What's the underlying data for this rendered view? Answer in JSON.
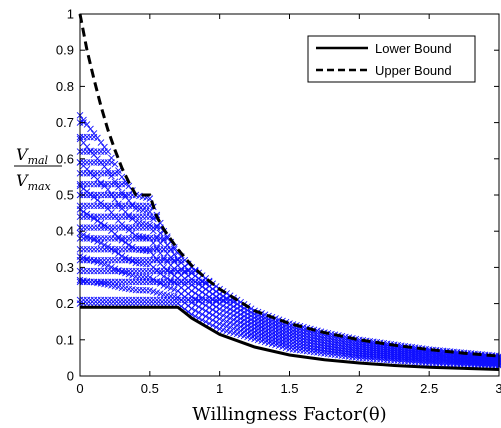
{
  "chart_data": {
    "type": "scatter",
    "title": "",
    "xlabel": "Willingness Factor(θ)",
    "ylabel": {
      "numerator": "V",
      "numerator_sub": "mal",
      "denominator": "V",
      "denominator_sub": "max"
    },
    "xlim": [
      0,
      3
    ],
    "ylim": [
      0,
      1
    ],
    "xticks": [
      "0",
      "0.5",
      "1",
      "1.5",
      "2",
      "2.5",
      "3"
    ],
    "yticks": [
      "0",
      "0.1",
      "0.2",
      "0.3",
      "0.4",
      "0.5",
      "0.6",
      "0.7",
      "0.8",
      "0.9",
      "1"
    ],
    "grid": false,
    "legend_position": "top-right",
    "series": [
      {
        "name": "Lower Bound",
        "style": "solid",
        "color": "#000000",
        "x": [
          0,
          0.7,
          0.75,
          0.8,
          1.0,
          1.25,
          1.5,
          1.75,
          2.0,
          2.25,
          2.5,
          2.75,
          3.0
        ],
        "y": [
          0.19,
          0.19,
          0.175,
          0.16,
          0.115,
          0.08,
          0.058,
          0.045,
          0.036,
          0.029,
          0.024,
          0.021,
          0.018
        ]
      },
      {
        "name": "Upper Bound",
        "style": "dashed",
        "color": "#000000",
        "x": [
          0,
          0.05,
          0.1,
          0.15,
          0.2,
          0.25,
          0.3,
          0.35,
          0.4,
          0.45,
          0.5,
          0.55,
          0.6,
          0.7,
          0.8,
          0.9,
          1.0,
          1.25,
          1.5,
          1.75,
          2.0,
          2.25,
          2.5,
          2.75,
          3.0
        ],
        "y": [
          1.0,
          0.9,
          0.82,
          0.745,
          0.68,
          0.625,
          0.575,
          0.535,
          0.5,
          0.5,
          0.5,
          0.44,
          0.405,
          0.35,
          0.305,
          0.27,
          0.24,
          0.18,
          0.145,
          0.12,
          0.1,
          0.085,
          0.073,
          0.063,
          0.055
        ]
      }
    ],
    "scatter": {
      "marker": "x",
      "color": "#1010ff",
      "x_start": 0,
      "x_step": 0.025,
      "x_end": 3.0,
      "band_low": [
        [
          0,
          0.2
        ],
        [
          0.7,
          0.2
        ],
        [
          0.8,
          0.17
        ],
        [
          1.0,
          0.13
        ],
        [
          1.5,
          0.075
        ],
        [
          2.0,
          0.05
        ],
        [
          2.5,
          0.036
        ],
        [
          3.0,
          0.028
        ]
      ],
      "band_high": [
        [
          0,
          0.72
        ],
        [
          0.2,
          0.62
        ],
        [
          0.3,
          0.55
        ],
        [
          0.4,
          0.5
        ],
        [
          0.5,
          0.49
        ],
        [
          0.6,
          0.4
        ],
        [
          0.7,
          0.34
        ],
        [
          0.8,
          0.3
        ],
        [
          1.0,
          0.24
        ],
        [
          1.25,
          0.18
        ],
        [
          1.5,
          0.145
        ],
        [
          1.75,
          0.12
        ],
        [
          2.0,
          0.1
        ],
        [
          2.5,
          0.073
        ],
        [
          3.0,
          0.055
        ]
      ],
      "levels": [
        0.21,
        0.26,
        0.29,
        0.32,
        0.35,
        0.38,
        0.41,
        0.44,
        0.47,
        0.5,
        0.53,
        0.56,
        0.59,
        0.62,
        0.66,
        0.7
      ]
    }
  }
}
